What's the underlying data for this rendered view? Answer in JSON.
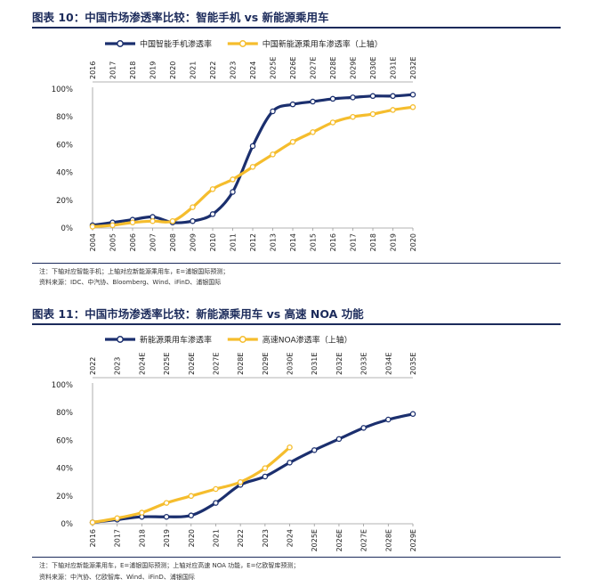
{
  "charts": [
    {
      "figure_title": "图表 10：中国市场渗透率比较：智能手机 vs 新能源乘用车",
      "note": "注：下轴对应智能手机；上轴对应新能源乘用车，E=浦银国际预测；",
      "source": "资料来源：IDC、中汽协、Bloomberg、Wind、iFinD、浦银国际",
      "colors": {
        "navy": "#1b2f6e",
        "gold": "#f5bd2d"
      },
      "chart_data": {
        "type": "line",
        "title": "",
        "y_ticks": [
          "0%",
          "20%",
          "40%",
          "60%",
          "80%",
          "100%"
        ],
        "ylim": [
          0,
          100
        ],
        "bottom_axis": [
          "2004",
          "2005",
          "2006",
          "2007",
          "2008",
          "2009",
          "2010",
          "2011",
          "2012",
          "2013",
          "2014",
          "2015",
          "2016",
          "2017",
          "2018",
          "2019",
          "2020"
        ],
        "top_axis": [
          "2016",
          "2017",
          "2018",
          "2019",
          "2020",
          "2021",
          "2022",
          "2023",
          "2024",
          "2025E",
          "2026E",
          "2027E",
          "2028E",
          "2029E",
          "2030E",
          "2031E",
          "2032E"
        ],
        "legend_position": "top",
        "series": [
          {
            "name": "中国智能手机渗透率",
            "axis": "bottom",
            "color": "#1b2f6e",
            "values": [
              2,
              4,
              6,
              8,
              4,
              5,
              10,
              26,
              59,
              84,
              89,
              91,
              93,
              94,
              95,
              95,
              96
            ]
          },
          {
            "name": "中国新能源乘用车渗透率（上轴）",
            "axis": "top",
            "color": "#f5bd2d",
            "values": [
              1,
              2,
              4,
              5,
              5,
              15,
              28,
              35,
              44,
              53,
              62,
              69,
              76,
              80,
              82,
              85,
              87
            ]
          }
        ]
      }
    },
    {
      "figure_title": "图表 11：中国市场渗透率比较：新能源乘用车 vs 高速 NOA 功能",
      "note": "注：下轴对应新能源乘用车，E=浦银国际预测；上轴对应高速 NOA 功能，E=亿欧智库预测；",
      "source": "资料来源：中汽协、亿欧智库、Wind、iFinD、浦银国际",
      "colors": {
        "navy": "#1b2f6e",
        "gold": "#f5bd2d"
      },
      "chart_data": {
        "type": "line",
        "title": "",
        "y_ticks": [
          "0%",
          "20%",
          "40%",
          "60%",
          "80%",
          "100%"
        ],
        "ylim": [
          0,
          100
        ],
        "bottom_axis": [
          "2016",
          "2017",
          "2018",
          "2019",
          "2020",
          "2021",
          "2022",
          "2023",
          "2024",
          "2025E",
          "2026E",
          "2027E",
          "2028E",
          "2029E"
        ],
        "top_axis": [
          "2022",
          "2023",
          "2024E",
          "2025E",
          "2026E",
          "2027E",
          "2028E",
          "2029E",
          "2030E",
          "2031E",
          "2032E",
          "2033E",
          "2034E",
          "2035E"
        ],
        "legend_position": "top",
        "series": [
          {
            "name": "新能源乘用车渗透率",
            "axis": "bottom",
            "color": "#1b2f6e",
            "values": [
              1,
              3,
              5,
              5,
              6,
              15,
              28,
              34,
              44,
              53,
              61,
              69,
              75,
              79
            ]
          },
          {
            "name": "高速NOA渗透率（上轴）",
            "axis": "top",
            "color": "#f5bd2d",
            "values": [
              1,
              4,
              8,
              15,
              20,
              25,
              30,
              40,
              55
            ]
          }
        ]
      }
    }
  ]
}
